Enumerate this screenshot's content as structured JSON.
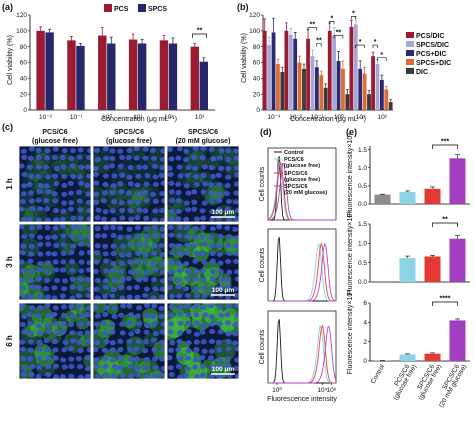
{
  "panel_labels": [
    "(a)",
    "(b)",
    "(c)",
    "(d)",
    "(e)"
  ],
  "chart_data": [
    {
      "panel": "(a)",
      "type": "bar",
      "categories": [
        "10⁻²",
        "10⁻¹",
        "10⁰",
        "10¹",
        "10²",
        "10³"
      ],
      "series": [
        {
          "name": "PCS",
          "values": [
            100,
            88,
            94,
            89,
            88,
            80
          ],
          "errors": [
            5,
            5,
            10,
            7,
            6,
            4
          ],
          "color": "#9b1c31"
        },
        {
          "name": "SPCS",
          "values": [
            98,
            81,
            84,
            84,
            84,
            61
          ],
          "errors": [
            4,
            3,
            8,
            5,
            7,
            5
          ],
          "color": "#26266b"
        }
      ],
      "xlabel": "Concentration (μg mL⁻¹)",
      "ylabel": "Cell viability (%)",
      "ylim": [
        0,
        120
      ],
      "yticks": [
        "0",
        "20",
        "40",
        "60",
        "80",
        "100",
        "120"
      ],
      "significance": [
        {
          "label": "**",
          "category": 5
        }
      ],
      "legend": "top-center"
    },
    {
      "panel": "(b)",
      "type": "bar",
      "categories": [
        "10⁻³",
        "10⁻²",
        "10⁻¹",
        "10⁰",
        "10¹",
        "10²"
      ],
      "series": [
        {
          "name": "PCS/DIC",
          "values": [
            100,
            100,
            90,
            100,
            105,
            68
          ],
          "errors": [
            15,
            10,
            12,
            10,
            8,
            5
          ],
          "color": "#9b1c31"
        },
        {
          "name": "SPCS/DIC",
          "values": [
            82,
            95,
            68,
            94,
            108,
            58
          ],
          "errors": [
            10,
            8,
            8,
            10,
            10,
            6
          ],
          "color": "#a7a6d9"
        },
        {
          "name": "PCS+DIC",
          "values": [
            98,
            90,
            54,
            62,
            52,
            38
          ],
          "errors": [
            18,
            8,
            8,
            12,
            10,
            6
          ],
          "color": "#2a2a70"
        },
        {
          "name": "SPCS+DIC",
          "values": [
            58,
            60,
            44,
            52,
            46,
            26
          ],
          "errors": [
            6,
            8,
            5,
            10,
            8,
            4
          ],
          "color": "#e06a35"
        },
        {
          "name": "DIC",
          "values": [
            48,
            52,
            28,
            20,
            20,
            10
          ],
          "errors": [
            6,
            6,
            5,
            6,
            5,
            3
          ],
          "color": "#3a3a3a"
        }
      ],
      "xlabel": "Concentration (μg mL⁻¹)",
      "ylabel": "Cell viability (%)",
      "ylim": [
        0,
        120
      ],
      "yticks": [
        "0",
        "20",
        "40",
        "60",
        "80",
        "100",
        "120"
      ],
      "significance": [
        {
          "label": "**",
          "category": 2
        },
        {
          "label": "**",
          "category": 2
        },
        {
          "label": "*",
          "category": 3
        },
        {
          "label": "**",
          "category": 3
        },
        {
          "label": "*",
          "category": 4
        },
        {
          "label": "*",
          "category": 4
        },
        {
          "label": "*",
          "category": 5
        },
        {
          "label": "*",
          "category": 5
        }
      ],
      "legend": "right"
    },
    {
      "panel": "(e)",
      "type": "bar",
      "categories": [
        "Control",
        "PCS/C6 (glucose free)",
        "SPCS/C6 (glucose free)",
        "SPCS/C6 (20 mM glucose)"
      ],
      "category_labels": [
        [
          "Control"
        ],
        [
          "PCS/C6",
          "(glucose free)"
        ],
        [
          "SPCS/C6",
          "(glucose free)"
        ],
        [
          "SPCS/C6",
          "(20 mM glucose)"
        ]
      ],
      "colors": [
        "#8c8c8c",
        "#8dd3e6",
        "#e53935",
        "#a23fbf"
      ],
      "panels": [
        {
          "time": "1 h",
          "values": [
            0.26,
            0.33,
            0.42,
            1.26
          ],
          "errors": [
            0.01,
            0.03,
            0.05,
            0.1
          ],
          "ylim": [
            0,
            1.6
          ],
          "yticks": [
            "0.0",
            "0.5",
            "1.0",
            "1.5"
          ],
          "significance": "***"
        },
        {
          "time": "3 h",
          "values": [
            0,
            0.62,
            0.66,
            1.12
          ],
          "errors": [
            0,
            0.05,
            0.03,
            0.08
          ],
          "ylim": [
            0,
            1.5
          ],
          "yticks": [
            "0.0",
            "0.5",
            "1.0",
            "1.5"
          ],
          "significance": "**"
        },
        {
          "time": "6 h",
          "values": [
            0.05,
            0.68,
            0.76,
            4.2
          ],
          "errors": [
            0.01,
            0.06,
            0.08,
            0.15
          ],
          "ylim": [
            0,
            6
          ],
          "yticks": [
            "0",
            "2",
            "4",
            "6"
          ],
          "significance": "****"
        }
      ],
      "ylabel": "Fluorescence intensity×10⁴"
    }
  ],
  "panel_c": {
    "columns": [
      [
        "PCS/C6",
        "(glucose free)"
      ],
      [
        "SPCS/C6",
        "(glucose free)"
      ],
      [
        "SPCS/C6",
        "(20 mM glucose)"
      ]
    ],
    "rows": [
      "1 h",
      "3 h",
      "6 h"
    ],
    "scale_bar": "100 μm",
    "green_level": [
      [
        0.08,
        0.06,
        0.12
      ],
      [
        0.35,
        0.3,
        0.7
      ],
      [
        0.55,
        0.6,
        0.95
      ]
    ]
  },
  "panel_d": {
    "legend": [
      "Control",
      "PCS/C6 (glucose free)",
      "SPCS/C6 (glucose free)",
      "SPCS/C6 (20 mM glucose)"
    ],
    "legend_lines": [
      [
        "Control"
      ],
      [
        "PCS/C6",
        "(glucose free)"
      ],
      [
        "SPCS/C6",
        "(glucose free)"
      ],
      [
        "SPCS/C6",
        "(20 mM glucose)"
      ]
    ],
    "colors": [
      "#111111",
      "#7fcfe0",
      "#e53935",
      "#b23fc9"
    ],
    "ylabel": "Cell counts",
    "xlabel": "Fluorescence intensity",
    "xticks": [
      "10⁰",
      "10⁵",
      "10⁶"
    ],
    "peaks_log": [
      [
        0.2,
        0.3,
        0.4,
        0.7
      ],
      [
        0.2,
        4.6,
        4.9,
        5.3
      ],
      [
        0.2,
        4.8,
        5.0,
        5.7
      ]
    ]
  }
}
